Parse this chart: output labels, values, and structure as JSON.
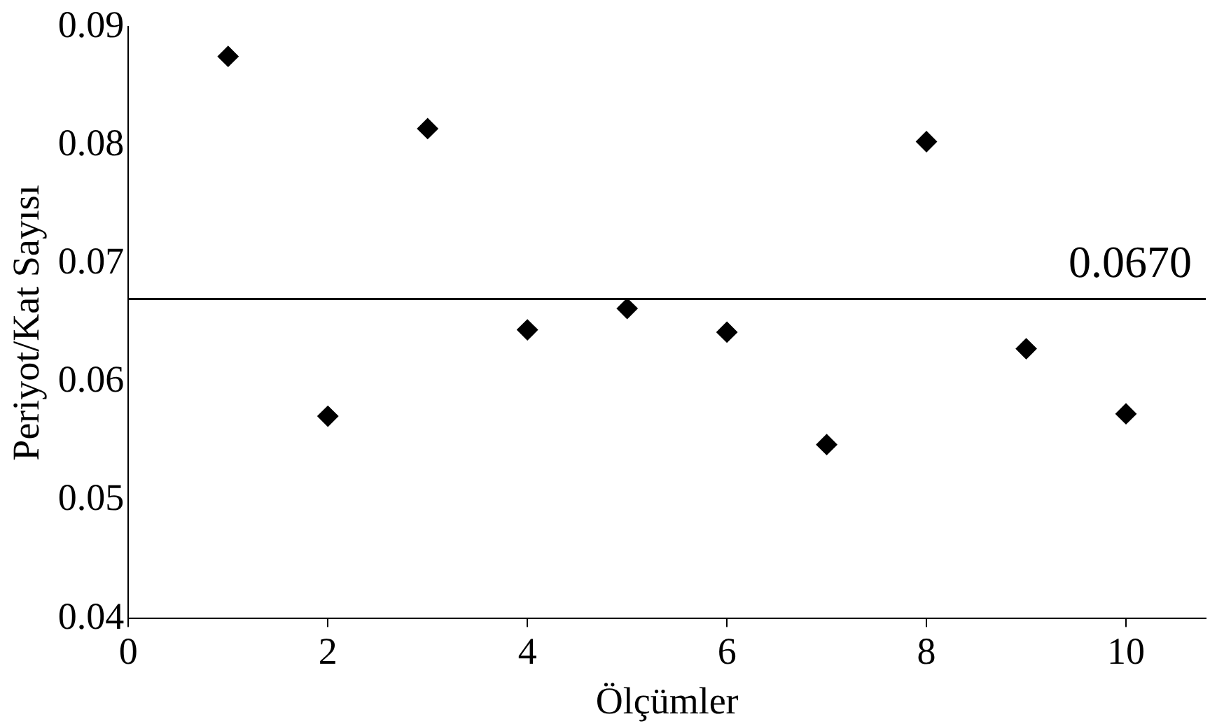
{
  "chart_data": {
    "type": "scatter",
    "xlabel": "Ölçümler",
    "ylabel": "Periyot/Kat Sayısı",
    "x": [
      1,
      2,
      3,
      4,
      5,
      6,
      7,
      8,
      9,
      10
    ],
    "values": [
      0.0875,
      0.0571,
      0.0814,
      0.0644,
      0.0662,
      0.0642,
      0.0547,
      0.0803,
      0.0628,
      0.0573
    ],
    "color": "#000000",
    "marker": "diamond",
    "xlim": [
      0,
      10.8
    ],
    "xticks": [
      0,
      2,
      4,
      6,
      8,
      10
    ],
    "ylim": [
      0.04,
      0.09
    ],
    "yticks": [
      {
        "value": 0.04,
        "label": "0.04"
      },
      {
        "value": 0.05,
        "label": "0.05"
      },
      {
        "value": 0.06,
        "label": "0.06"
      },
      {
        "value": 0.07,
        "label": "0.07"
      },
      {
        "value": 0.08,
        "label": "0.08"
      },
      {
        "value": 0.09,
        "label": "0.09"
      }
    ],
    "ref_lines": [
      {
        "axis": "y",
        "value": 0.067,
        "label": "0.0670",
        "color": "#000000"
      }
    ],
    "grid": false,
    "legend": false
  }
}
